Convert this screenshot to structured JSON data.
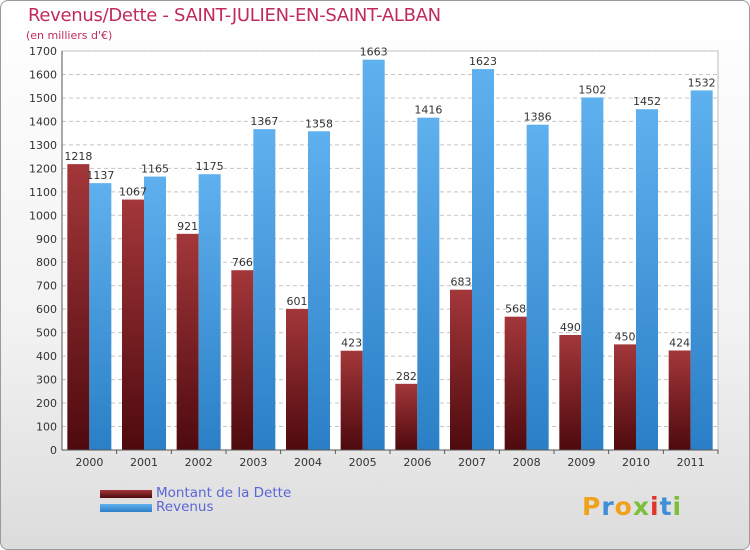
{
  "chart_data": {
    "type": "bar",
    "title": "Revenus/Dette - SAINT-JULIEN-EN-SAINT-ALBAN",
    "subtitle": "(en milliers d'€)",
    "categories": [
      "2000",
      "2001",
      "2002",
      "2003",
      "2004",
      "2005",
      "2006",
      "2007",
      "2008",
      "2009",
      "2010",
      "2011"
    ],
    "series": [
      {
        "name": "Montant de la Dette",
        "color": "#7d1e24",
        "values": [
          1218,
          1067,
          921,
          766,
          601,
          423,
          282,
          683,
          568,
          490,
          450,
          424
        ]
      },
      {
        "name": "Revenus",
        "color": "#4aa0e2",
        "values": [
          1137,
          1165,
          1175,
          1367,
          1358,
          1663,
          1416,
          1623,
          1386,
          1502,
          1452,
          1532
        ]
      }
    ],
    "ylim": [
      0,
      1700
    ],
    "ytick_step": 100,
    "yticks": [
      "0",
      "100",
      "200",
      "300",
      "400",
      "500",
      "600",
      "700",
      "800",
      "900",
      "1000",
      "1100",
      "1200",
      "1300",
      "1400",
      "1500",
      "1600",
      "1700"
    ],
    "grid": true,
    "legend": "bottom-left"
  },
  "logo_text": "Proxiti"
}
